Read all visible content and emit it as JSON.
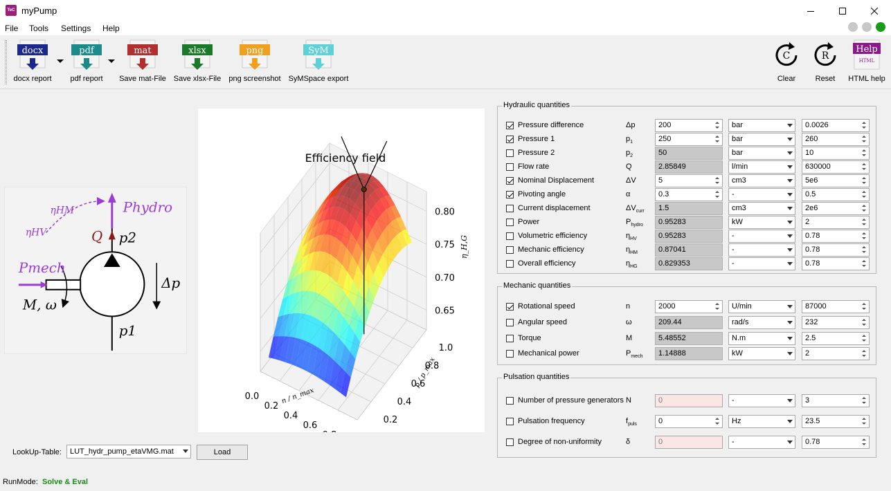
{
  "window": {
    "title": "myPump",
    "icon_text": "TeC"
  },
  "menu": {
    "items": [
      "File",
      "Tools",
      "Settings",
      "Help"
    ]
  },
  "status_lights": [
    "#c8c8c8",
    "#c8c8c8",
    "#1a9b1a"
  ],
  "toolbar": {
    "buttons": [
      {
        "icon_text": "docx",
        "label": "docx report",
        "color": "#1b2a8a"
      },
      {
        "icon_text": "pdf",
        "label": "pdf report",
        "color": "#1b8a8a"
      },
      {
        "icon_text": "mat",
        "label": "Save mat-File",
        "color": "#b03030"
      },
      {
        "icon_text": "xlsx",
        "label": "Save xlsx-File",
        "color": "#1a7a2a"
      },
      {
        "icon_text": "png",
        "label": "png screenshot",
        "color": "#f0a020"
      },
      {
        "icon_text": "SyM",
        "label": "SyMSpace export",
        "color": "#60d0d8"
      }
    ],
    "right_buttons": [
      {
        "icon_text": "C",
        "label": "Clear"
      },
      {
        "icon_text": "R",
        "label": "Reset"
      },
      {
        "icon_text": "Help",
        "sub_text": "HTML",
        "label": "HTML help"
      }
    ]
  },
  "schematic": {
    "eta_hm": "ηHM",
    "eta_hv": "ηHV",
    "p_hydro": "Phydro",
    "q": "Q",
    "p2": "p2",
    "p_mech": "Pmech",
    "m_omega": "M, ω",
    "delta_p": "Δp",
    "p1": "p1"
  },
  "chart_data": {
    "type": "surface",
    "title": "Efficiency field",
    "xlabel": "n / n_max",
    "ylabel": "p / p_max",
    "zlabel": "η_H,G",
    "x_ticks": [
      "0.0",
      "0.2",
      "0.4",
      "0.6",
      "0.8",
      "1.0"
    ],
    "y_ticks": [
      "0.0",
      "0.2",
      "0.4",
      "0.6",
      "0.8",
      "1.0"
    ],
    "z_ticks": [
      "0.65",
      "0.70",
      "0.75",
      "0.80"
    ],
    "zlim": [
      0.62,
      0.83
    ],
    "operating_point": {
      "x": 0.52,
      "y": 0.77,
      "z": 0.829353
    },
    "colormap": "jet",
    "grid": true
  },
  "hydraulic": {
    "title": "Hydraulic quantities",
    "rows": [
      {
        "label": "Pressure difference",
        "sym": "Δp",
        "sub": "",
        "checked": true,
        "value": "200",
        "state": "edit",
        "unit": "bar",
        "max": "0.0026"
      },
      {
        "label": "Pressure 1",
        "sym": "p",
        "sub": "1",
        "checked": true,
        "value": "250",
        "state": "edit",
        "unit": "bar",
        "max": "260"
      },
      {
        "label": "Pressure 2",
        "sym": "p",
        "sub": "2",
        "checked": false,
        "value": "50",
        "state": "gray",
        "unit": "bar",
        "max": "10"
      },
      {
        "label": "Flow rate",
        "sym": "Q",
        "sub": "",
        "checked": false,
        "value": "2.85849",
        "state": "gray",
        "unit": "l/min",
        "max": "630000"
      },
      {
        "label": "Nominal Displacement",
        "sym": "ΔV",
        "sub": "",
        "checked": true,
        "value": "5",
        "state": "edit",
        "unit": "cm3",
        "max": "5e6"
      },
      {
        "label": "Pivoting angle",
        "sym": "α",
        "sub": "",
        "checked": true,
        "value": "0.3",
        "state": "edit",
        "unit": "-",
        "max": "0.5"
      },
      {
        "label": "Current displacement",
        "sym": "ΔV",
        "sub": "curr",
        "checked": false,
        "value": "1.5",
        "state": "gray",
        "unit": "cm3",
        "max": "2e6"
      },
      {
        "label": "Power",
        "sym": "P",
        "sub": "hydro",
        "checked": false,
        "value": "0.95283",
        "state": "gray",
        "unit": "kW",
        "max": "2"
      },
      {
        "label": "Volumetric efficiency",
        "sym": "η",
        "sub": "HV",
        "checked": false,
        "value": "0.95283",
        "state": "gray",
        "unit": "-",
        "max": "0.78"
      },
      {
        "label": "Mechanic efficiency",
        "sym": "η",
        "sub": "HM",
        "checked": false,
        "value": "0.87041",
        "state": "gray",
        "unit": "-",
        "max": "0.78"
      },
      {
        "label": "Overall efficiency",
        "sym": "η",
        "sub": "HG",
        "checked": false,
        "value": "0.829353",
        "state": "gray",
        "unit": "-",
        "max": "0.78"
      }
    ]
  },
  "mechanic": {
    "title": "Mechanic quantities",
    "rows": [
      {
        "label": "Rotational speed",
        "sym": "n",
        "sub": "",
        "checked": true,
        "value": "2000",
        "state": "edit",
        "unit": "U/min",
        "max": "87000"
      },
      {
        "label": "Angular speed",
        "sym": "ω",
        "sub": "",
        "checked": false,
        "value": "209.44",
        "state": "gray",
        "unit": "rad/s",
        "max": "232"
      },
      {
        "label": "Torque",
        "sym": "M",
        "sub": "",
        "checked": false,
        "value": "5.48552",
        "state": "gray",
        "unit": "N.m",
        "max": "2.5"
      },
      {
        "label": "Mechanical power",
        "sym": "P",
        "sub": "mech",
        "checked": false,
        "value": "1.14888",
        "state": "gray",
        "unit": "kW",
        "max": "2"
      }
    ]
  },
  "pulsation": {
    "title": "Pulsation quantities",
    "rows": [
      {
        "label": "Number of pressure generators",
        "sym": "N",
        "sub": "",
        "checked": false,
        "value": "0",
        "state": "pink",
        "unit": "-",
        "max": "3"
      },
      {
        "label": "Pulsation frequency",
        "sym": "f",
        "sub": "puls",
        "checked": false,
        "value": "0",
        "state": "edit",
        "unit": "Hz",
        "max": "23.5"
      },
      {
        "label": "Degree of non-uniformity",
        "sym": "δ",
        "sub": "",
        "checked": false,
        "value": "0",
        "state": "pink",
        "unit": "-",
        "max": "0.78"
      }
    ]
  },
  "lookup": {
    "label": "LookUp-Table:",
    "value": "LUT_hydr_pump_etaVMG.mat",
    "load_label": "Load"
  },
  "runmode": {
    "label": "RunMode:",
    "value": "Solve & Eval"
  }
}
